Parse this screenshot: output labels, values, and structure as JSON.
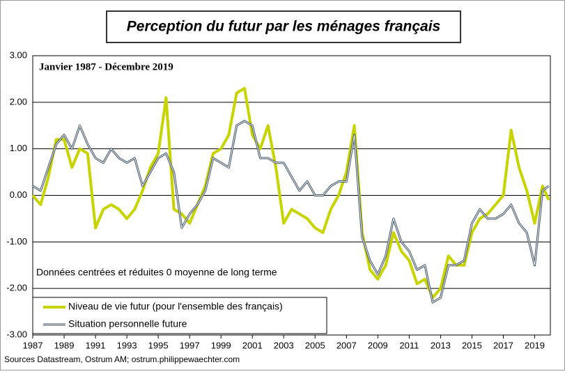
{
  "chart_data": {
    "type": "line",
    "title": "Perception du futur par les ménages français",
    "subtitle": "Janvier 1987 - Décembre 2019",
    "annotation": "Données centrées et réduites    0 moyenne de long terme",
    "source": "Sources Datastream, Ostrum AM;  ostrum.philippewaechter.com",
    "x": [
      1987.0,
      1987.5,
      1988.0,
      1988.5,
      1989.0,
      1989.5,
      1990.0,
      1990.5,
      1991.0,
      1991.5,
      1992.0,
      1992.5,
      1993.0,
      1993.5,
      1994.0,
      1994.5,
      1995.0,
      1995.5,
      1996.0,
      1996.5,
      1997.0,
      1997.5,
      1998.0,
      1998.5,
      1999.0,
      1999.5,
      2000.0,
      2000.5,
      2001.0,
      2001.5,
      2002.0,
      2002.5,
      2003.0,
      2003.5,
      2004.0,
      2004.5,
      2005.0,
      2005.5,
      2006.0,
      2006.5,
      2007.0,
      2007.5,
      2008.0,
      2008.5,
      2009.0,
      2009.5,
      2010.0,
      2010.5,
      2011.0,
      2011.5,
      2012.0,
      2012.5,
      2013.0,
      2013.5,
      2014.0,
      2014.5,
      2015.0,
      2015.5,
      2016.0,
      2016.5,
      2017.0,
      2017.5,
      2018.0,
      2018.5,
      2019.0,
      2019.5,
      2019.9
    ],
    "series": [
      {
        "name": "Niveau de vie futur (pour l'ensemble des français)",
        "color": "#c8d400",
        "width": 4,
        "values": [
          0.0,
          -0.2,
          0.4,
          1.2,
          1.2,
          0.6,
          1.0,
          0.9,
          -0.7,
          -0.3,
          -0.2,
          -0.3,
          -0.5,
          -0.3,
          0.1,
          0.6,
          0.9,
          2.1,
          -0.3,
          -0.4,
          -0.6,
          -0.2,
          0.2,
          0.9,
          1.0,
          1.3,
          2.2,
          2.3,
          1.3,
          1.0,
          1.5,
          0.6,
          -0.6,
          -0.3,
          -0.4,
          -0.5,
          -0.7,
          -0.8,
          -0.3,
          0.0,
          0.5,
          1.5,
          -0.8,
          -1.6,
          -1.8,
          -1.5,
          -0.8,
          -1.2,
          -1.4,
          -1.9,
          -1.8,
          -2.2,
          -2.0,
          -1.3,
          -1.5,
          -1.5,
          -0.8,
          -0.5,
          -0.4,
          -0.2,
          0.0,
          1.4,
          0.6,
          0.1,
          -0.6,
          0.2,
          -0.1
        ]
      },
      {
        "name": "Situation personnelle future",
        "color": "#3c4f61",
        "width": 3,
        "values": [
          0.2,
          0.1,
          0.6,
          1.1,
          1.3,
          1.0,
          1.5,
          1.1,
          0.8,
          0.7,
          1.0,
          0.8,
          0.7,
          0.8,
          0.2,
          0.5,
          0.8,
          0.9,
          0.5,
          -0.7,
          -0.4,
          -0.2,
          0.1,
          0.8,
          0.7,
          0.6,
          1.5,
          1.6,
          1.5,
          0.8,
          0.8,
          0.7,
          0.7,
          0.4,
          0.1,
          0.3,
          0.0,
          0.0,
          0.2,
          0.3,
          0.3,
          1.3,
          -0.9,
          -1.4,
          -1.7,
          -1.3,
          -0.5,
          -1.0,
          -1.2,
          -1.6,
          -1.5,
          -2.3,
          -2.2,
          -1.5,
          -1.5,
          -1.4,
          -0.6,
          -0.3,
          -0.5,
          -0.5,
          -0.4,
          -0.2,
          -0.6,
          -0.8,
          -1.5,
          0.1,
          0.2
        ]
      }
    ],
    "xlim": [
      1987,
      2020
    ],
    "xticks": [
      1987,
      1989,
      1991,
      1993,
      1995,
      1997,
      1999,
      2001,
      2003,
      2005,
      2007,
      2009,
      2011,
      2013,
      2015,
      2017,
      2019
    ],
    "ylim": [
      -3,
      3
    ],
    "yticks": [
      {
        "value": -3,
        "label": "-3.00"
      },
      {
        "value": -2,
        "label": "-2.00"
      },
      {
        "value": -1,
        "label": "-1.00"
      },
      {
        "value": 0,
        "label": "0.00"
      },
      {
        "value": 1,
        "label": "1.00"
      },
      {
        "value": 2,
        "label": "2.00"
      },
      {
        "value": 3,
        "label": "3.00"
      }
    ],
    "grid": true
  }
}
